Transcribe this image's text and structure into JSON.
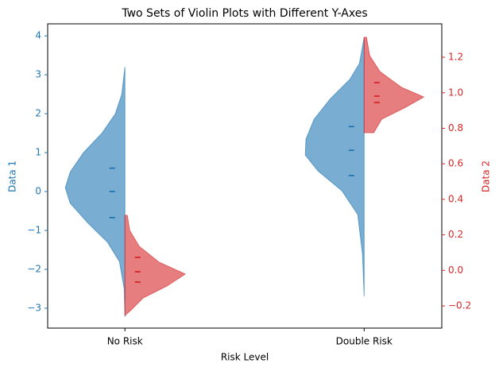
{
  "chart_data": {
    "type": "violin",
    "title": "Two Sets of Violin Plots with Different Y-Axes",
    "xlabel": "Risk Level",
    "ylabel": "Data 1",
    "y2label": "Data 2",
    "categories": [
      "No Risk",
      "Double Risk"
    ],
    "ylim": [
      -3.51,
      4.31
    ],
    "yticks": [
      {
        "value": -3,
        "label": "−3"
      },
      {
        "value": -2,
        "label": "−2"
      },
      {
        "value": -1,
        "label": "−1"
      },
      0,
      1,
      2,
      3,
      4
    ],
    "y2lim": [
      -0.325,
      1.388
    ],
    "y2ticks": [
      {
        "value": -0.2,
        "label": "−0.2"
      },
      {
        "value": 0,
        "label": "0.0"
      },
      0.2,
      0.4,
      0.6,
      0.8,
      {
        "value": 1,
        "label": "1.0"
      },
      1.2
    ],
    "series": [
      {
        "color": "#1f77b4",
        "axis": "y",
        "side": "left",
        "violins": [
          {
            "y": [
              3.2,
              2.5,
              2.0,
              1.5,
              1.0,
              0.5,
              0.1,
              -0.3,
              -0.8,
              -1.3,
              -1.8,
              -2.5,
              -3.2
            ],
            "half_width": [
              0,
              0.013,
              0.04,
              0.096,
              0.173,
              0.229,
              0.249,
              0.229,
              0.156,
              0.073,
              0.023,
              0.003,
              0
            ],
            "quartiles": [
              0.6,
              0,
              -0.67
            ]
          },
          {
            "y": [
              3.96,
              3.29,
              2.88,
              2.37,
              1.86,
              1.35,
              0.94,
              0.53,
              0.02,
              -0.59,
              -1.61,
              -2.69
            ],
            "half_width": [
              0,
              0.02,
              0.06,
              0.143,
              0.209,
              0.243,
              0.246,
              0.193,
              0.093,
              0.027,
              0.007,
              0
            ],
            "quartiles": [
              1.67,
              1.06,
              0.41
            ]
          }
        ]
      },
      {
        "color": "#d62728",
        "axis": "y2",
        "side": "right",
        "violins": [
          {
            "y": [
              0.31,
              0.225,
              0.135,
              0.046,
              -0.021,
              -0.088,
              -0.155,
              -0.222,
              -0.254
            ],
            "half_width": [
              0.01,
              0.02,
              0.06,
              0.143,
              0.252,
              0.176,
              0.076,
              0.027,
              0
            ],
            "quartiles": [
              0.073,
              -0.008,
              -0.066
            ]
          },
          {
            "y": [
              1.312,
              1.209,
              1.119,
              1.03,
              0.976,
              0.918,
              0.851,
              0.775
            ],
            "half_width": [
              0.01,
              0.023,
              0.066,
              0.156,
              0.249,
              0.173,
              0.073,
              0.04
            ],
            "quartiles": [
              1.057,
              0.981,
              0.945
            ]
          }
        ]
      }
    ]
  }
}
